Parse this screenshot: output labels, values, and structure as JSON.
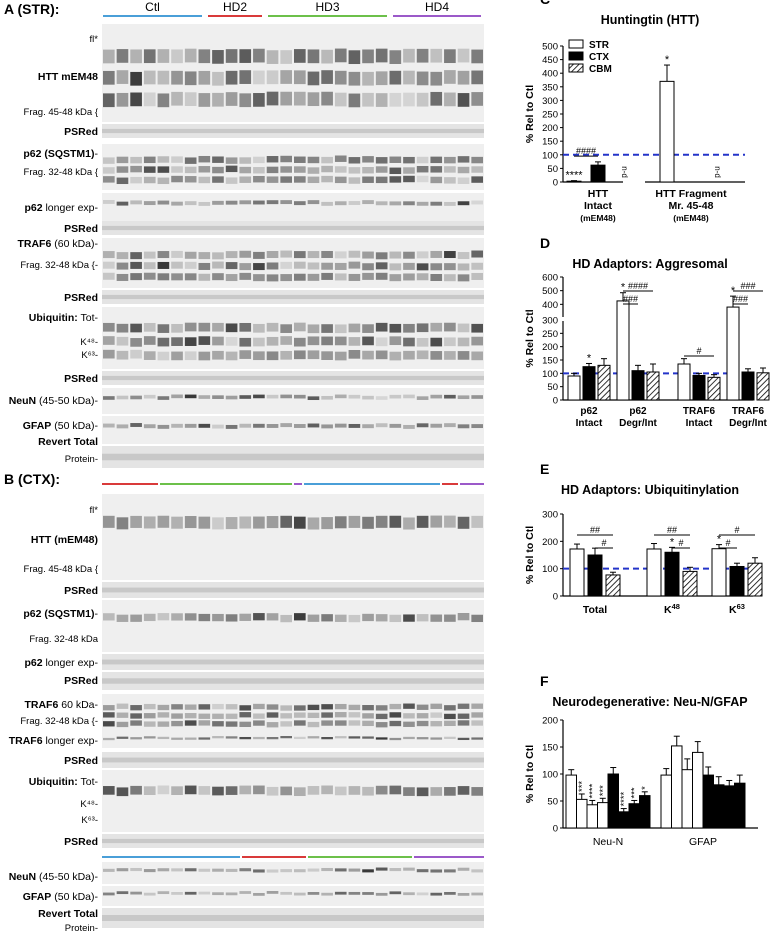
{
  "panels": {
    "A": {
      "label": "A (STR):",
      "groups": [
        {
          "name": "Ctl",
          "color": "#4a9fd8"
        },
        {
          "name": "HD2",
          "color": "#d93a3a"
        },
        {
          "name": "HD3",
          "color": "#6cc04a"
        },
        {
          "name": "HD4",
          "color": "#9b59c9"
        }
      ],
      "rows": [
        {
          "name": "HTT mEM48",
          "bold": "HTT mEM48",
          "rest": "",
          "sub": [
            "fl*",
            "Frag. 45-48 kDa {"
          ]
        },
        {
          "name": "PSRed",
          "bold": "PSRed",
          "rest": "",
          "sub": []
        },
        {
          "name": "p62 (SQSTM1)",
          "bold": "p62 (SQSTM1)",
          "rest": "-",
          "sub": [
            "Frag. 32-48 kDa {"
          ]
        },
        {
          "name": "p62 longer exp",
          "bold": "p62",
          "rest": " longer exp-",
          "sub": []
        },
        {
          "name": "PSRed",
          "bold": "PSRed",
          "rest": "",
          "sub": []
        },
        {
          "name": "TRAF6",
          "bold": "TRAF6",
          "rest": " (60 kDa)-",
          "sub": [
            "Frag. 32-48 kDa {-"
          ]
        },
        {
          "name": "PSRed",
          "bold": "PSRed",
          "rest": "",
          "sub": []
        },
        {
          "name": "Ubiquitin",
          "bold": "Ubiquitin:",
          "rest": " Tot-",
          "sub": [
            "K⁴⁸-",
            "K⁶³-"
          ]
        },
        {
          "name": "PSRed",
          "bold": "PSRed",
          "rest": "",
          "sub": []
        },
        {
          "name": "NeuN",
          "bold": "NeuN",
          "rest": " (45-50 kDa)-",
          "sub": []
        },
        {
          "name": "GFAP",
          "bold": "GFAP",
          "rest": " (50 kDa)-",
          "sub": []
        },
        {
          "name": "Revert Total Protein",
          "bold": "Revert Total",
          "rest": "",
          "sub": [
            "Protein-"
          ]
        }
      ]
    },
    "B": {
      "label": "B (CTX):",
      "rows": [
        {
          "name": "HTT (mEM48)",
          "bold": "HTT (mEM48)",
          "rest": "",
          "sub": [
            "fl*",
            "Frag. 45-48 kDa {"
          ]
        },
        {
          "name": "PSRed",
          "bold": "PSRed",
          "rest": "",
          "sub": []
        },
        {
          "name": "p62 (SQSTM1)",
          "bold": "p62 (SQSTM1)",
          "rest": "-",
          "sub": [
            "Frag.  32-48 kDa"
          ]
        },
        {
          "name": "p62 longer exp",
          "bold": "p62",
          "rest": " longer exp-",
          "sub": []
        },
        {
          "name": "PSRed",
          "bold": "PSRed",
          "rest": "",
          "sub": []
        },
        {
          "name": "TRAF6",
          "bold": "TRAF6",
          "rest": " 60 kDa-",
          "sub": [
            "Frag.  32-48 kDa {-"
          ]
        },
        {
          "name": "TRAF6 longer exp",
          "bold": "TRAF6",
          "rest": " longer exp-",
          "sub": []
        },
        {
          "name": "PSRed",
          "bold": "PSRed",
          "rest": "",
          "sub": []
        },
        {
          "name": "Ubiquitin",
          "bold": "Ubiquitin:",
          "rest": " Tot-",
          "sub": [
            "K⁴⁸-",
            "K⁶³-"
          ]
        },
        {
          "name": "PSRed",
          "bold": "PSRed",
          "rest": "",
          "sub": []
        },
        {
          "name": "NeuN",
          "bold": "NeuN",
          "rest": " (45-50 kDa)-",
          "sub": []
        },
        {
          "name": "GFAP",
          "bold": "GFAP",
          "rest": " (50 kDa)-",
          "sub": []
        },
        {
          "name": "Revert Total Protein",
          "bold": "Revert Total",
          "rest": "",
          "sub": [
            "Protein-"
          ]
        }
      ]
    }
  },
  "chart_data": [
    {
      "panel": "C",
      "type": "bar",
      "title": "Huntingtin (HTT)",
      "ylabel": "% Rel to Ctl",
      "ylim": [
        0,
        500
      ],
      "yticks": [
        0,
        50,
        100,
        150,
        200,
        250,
        300,
        350,
        400,
        450,
        500
      ],
      "legend": [
        "STR",
        "CTX",
        "CBM"
      ],
      "legend_position": "top-left",
      "categories": [
        {
          "label": "HTT",
          "label2": "Intact",
          "label3": "(mEM48)"
        },
        {
          "label": "HTT Fragment",
          "label2": "Mr. 45-48",
          "label3": "(mEM48)"
        }
      ],
      "series": [
        {
          "name": "STR",
          "style": "white",
          "values": [
            3,
            370
          ],
          "errors": [
            2,
            60
          ],
          "stars": [
            "****",
            "*"
          ]
        },
        {
          "name": "CTX",
          "style": "black",
          "values": [
            62,
            0
          ],
          "errors": [
            12,
            0
          ],
          "stars": [
            "",
            ""
          ]
        },
        {
          "name": "CBM",
          "style": "hatch",
          "values": [
            0,
            0
          ],
          "errors": [
            0,
            0
          ],
          "stars": [
            "",
            ""
          ],
          "nd": [
            "n-d",
            "n-d"
          ]
        }
      ],
      "ctl_line": 100,
      "brackets": [
        {
          "text": "####",
          "from": [
            0,
            0
          ],
          "to": [
            0,
            1
          ]
        }
      ]
    },
    {
      "panel": "D",
      "type": "bar",
      "title": "HD Adaptors: Aggresomal",
      "ylabel": "% Rel to Ctl",
      "yticks": [
        0,
        50,
        100,
        150,
        200,
        250,
        300,
        400,
        500,
        600
      ],
      "categories": [
        {
          "label": "p62",
          "label2": "Intact"
        },
        {
          "label": "p62",
          "label2": "Degr/Int"
        },
        {
          "label": "TRAF6",
          "label2": "Intact"
        },
        {
          "label": "TRAF6",
          "label2": "Degr/Int"
        }
      ],
      "series": [
        {
          "name": "STR",
          "style": "white",
          "values": [
            90,
            425,
            135,
            380
          ],
          "errors": [
            10,
            60,
            20,
            80
          ],
          "stars": [
            "",
            "*",
            "",
            "*"
          ]
        },
        {
          "name": "CTX",
          "style": "black",
          "values": [
            125,
            110,
            92,
            105
          ],
          "errors": [
            12,
            20,
            8,
            12
          ],
          "stars": [
            "*",
            "",
            "",
            ""
          ]
        },
        {
          "name": "CBM",
          "style": "hatch",
          "values": [
            130,
            105,
            85,
            102
          ],
          "errors": [
            25,
            30,
            10,
            18
          ],
          "stars": [
            "",
            "",
            "",
            ""
          ]
        }
      ],
      "ctl_line": 100,
      "brackets": [
        {
          "text": "####",
          "from": [
            1,
            0
          ],
          "to": [
            1,
            2
          ]
        },
        {
          "text": "###",
          "from": [
            1,
            0
          ],
          "to": [
            1,
            1
          ]
        },
        {
          "text": "#",
          "from": [
            2,
            0
          ],
          "to": [
            2,
            2
          ]
        },
        {
          "text": "###",
          "from": [
            3,
            0
          ],
          "to": [
            3,
            2
          ]
        },
        {
          "text": "###",
          "from": [
            3,
            0
          ],
          "to": [
            3,
            1
          ]
        }
      ]
    },
    {
      "panel": "E",
      "type": "bar",
      "title": "HD Adaptors: Ubiquitinylation",
      "ylabel": "% Rel to Ctl",
      "ylim": [
        0,
        300
      ],
      "yticks": [
        0,
        100,
        200,
        300
      ],
      "categories": [
        {
          "label": "Total",
          "label2": ""
        },
        {
          "label": "K",
          "sup": "48",
          "label2": ""
        },
        {
          "label": "K",
          "sup": "63",
          "label2": ""
        }
      ],
      "series": [
        {
          "name": "STR",
          "style": "white",
          "values": [
            172,
            172,
            173
          ],
          "errors": [
            18,
            20,
            15
          ],
          "stars": [
            "",
            "",
            "*"
          ]
        },
        {
          "name": "CTX",
          "style": "black",
          "values": [
            150,
            160,
            108
          ],
          "errors": [
            25,
            18,
            12
          ],
          "stars": [
            "",
            "*",
            ""
          ]
        },
        {
          "name": "CBM",
          "style": "hatch",
          "values": [
            77,
            90,
            120
          ],
          "errors": [
            10,
            15,
            20
          ],
          "stars": [
            "",
            "",
            ""
          ]
        }
      ],
      "ctl_line": 100,
      "brackets": [
        {
          "text": "##",
          "from": [
            0,
            0
          ],
          "to": [
            0,
            2
          ]
        },
        {
          "text": "#",
          "from": [
            0,
            1
          ],
          "to": [
            0,
            2
          ]
        },
        {
          "text": "##",
          "from": [
            1,
            0
          ],
          "to": [
            1,
            2
          ]
        },
        {
          "text": "#",
          "from": [
            1,
            1
          ],
          "to": [
            1,
            2
          ]
        },
        {
          "text": "#",
          "from": [
            2,
            0
          ],
          "to": [
            2,
            2
          ]
        },
        {
          "text": "#",
          "from": [
            2,
            0
          ],
          "to": [
            2,
            1
          ]
        }
      ]
    },
    {
      "panel": "F",
      "type": "bar",
      "title": "Neurodegenerative: Neu-N/GFAP",
      "ylabel": "% Rel to Ctl",
      "ylim": [
        0,
        200
      ],
      "yticks": [
        0,
        50,
        100,
        150,
        200
      ],
      "groups": [
        {
          "label": "Neu-N",
          "bars": [
            {
              "style": "white",
              "value": 98,
              "error": 10,
              "star": ""
            },
            {
              "style": "white",
              "value": 53,
              "error": 10,
              "star": "***"
            },
            {
              "style": "white",
              "value": 43,
              "error": 8,
              "star": "****"
            },
            {
              "style": "white",
              "value": 47,
              "error": 8,
              "star": "***"
            },
            {
              "style": "black",
              "value": 100,
              "error": 12,
              "star": ""
            },
            {
              "style": "black",
              "value": 30,
              "error": 6,
              "star": "****"
            },
            {
              "style": "black",
              "value": 45,
              "error": 6,
              "star": "***"
            },
            {
              "style": "black",
              "value": 60,
              "error": 7,
              "star": "*"
            }
          ]
        },
        {
          "label": "GFAP",
          "bars": [
            {
              "style": "white",
              "value": 98,
              "error": 12,
              "star": ""
            },
            {
              "style": "white",
              "value": 152,
              "error": 18,
              "star": ""
            },
            {
              "style": "white",
              "value": 108,
              "error": 20,
              "star": ""
            },
            {
              "style": "white",
              "value": 140,
              "error": 20,
              "star": ""
            },
            {
              "style": "black",
              "value": 98,
              "error": 15,
              "star": ""
            },
            {
              "style": "black",
              "value": 80,
              "error": 15,
              "star": ""
            },
            {
              "style": "black",
              "value": 78,
              "error": 10,
              "star": ""
            },
            {
              "style": "black",
              "value": 83,
              "error": 15,
              "star": ""
            }
          ]
        }
      ]
    }
  ],
  "colors": {
    "ctl_line": "#2434c9",
    "bar_black": "#000000",
    "bar_white": "#ffffff"
  }
}
